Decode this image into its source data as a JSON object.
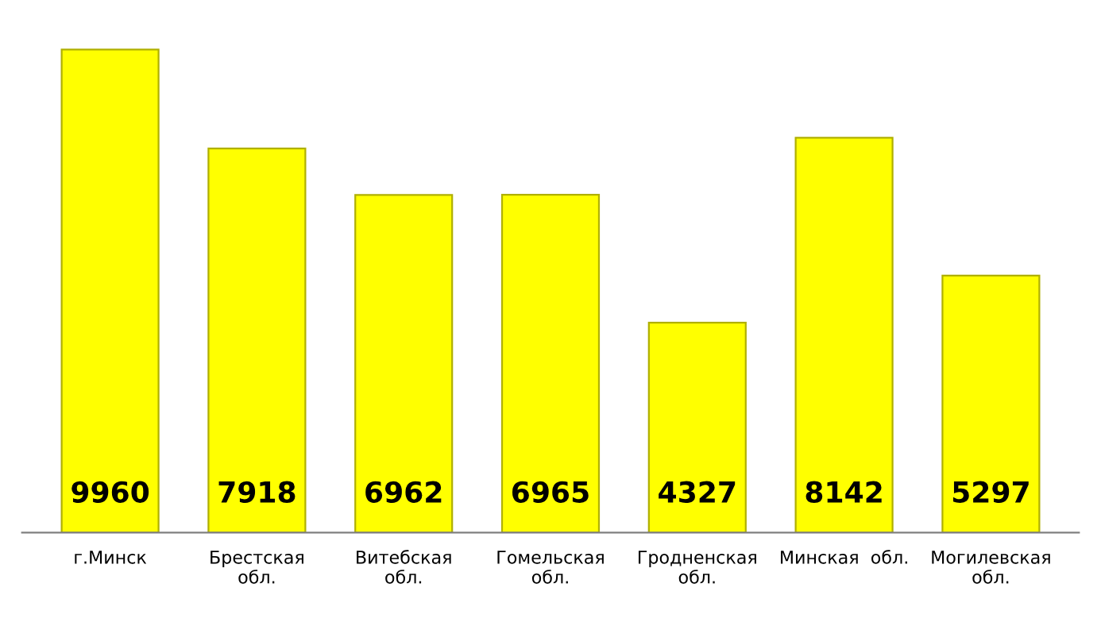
{
  "chart_data": {
    "type": "bar",
    "categories": [
      "г.Минск",
      "Брестская\nобл.",
      "Витебская\nобл.",
      "Гомельская\nобл.",
      "Гродненская\nобл.",
      "Минская  обл.",
      "Могилевская\nобл."
    ],
    "values": [
      9960,
      7918,
      6962,
      6965,
      4327,
      8142,
      5297
    ],
    "color": "#ffff00",
    "data_labels": true
  }
}
